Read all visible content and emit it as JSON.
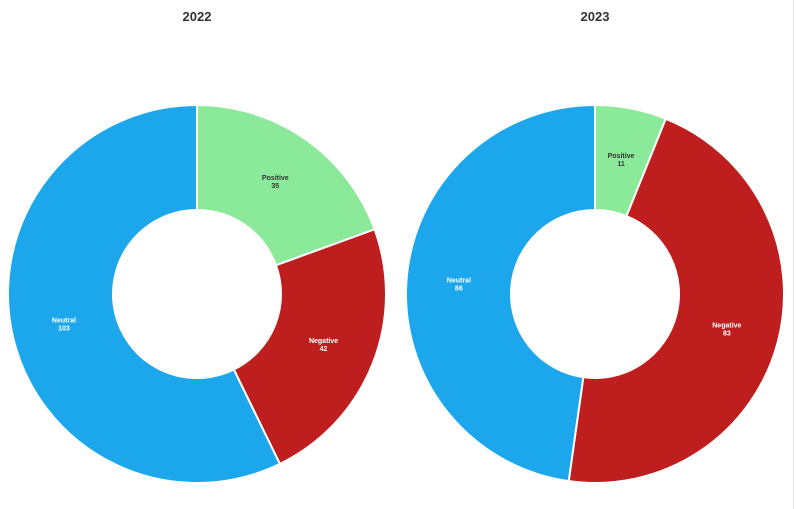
{
  "chart_data": [
    {
      "type": "pie",
      "title": "2022",
      "donut": true,
      "slices": [
        {
          "label": "Positive",
          "value": 35,
          "color": "#8aea99",
          "text_color": "#333333"
        },
        {
          "label": "Negative",
          "value": 42,
          "color": "#be1e1e",
          "text_color": "#ffffff"
        },
        {
          "label": "Neutral",
          "value": 103,
          "color": "#1ca7ec",
          "text_color": "#ffffff"
        }
      ]
    },
    {
      "type": "pie",
      "title": "2023",
      "donut": true,
      "slices": [
        {
          "label": "Positive",
          "value": 11,
          "color": "#8aea99",
          "text_color": "#333333"
        },
        {
          "label": "Negative",
          "value": 83,
          "color": "#be1e1e",
          "text_color": "#ffffff"
        },
        {
          "label": "Neutral",
          "value": 86,
          "color": "#1ca7ec",
          "text_color": "#ffffff"
        }
      ]
    }
  ]
}
